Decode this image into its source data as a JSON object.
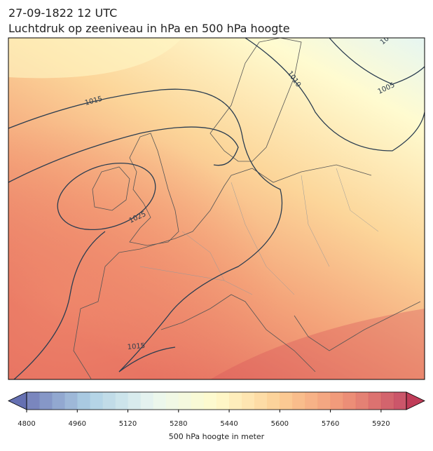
{
  "header": {
    "title": "27-09-1822 12 UTC",
    "subtitle": "Luchtdruk op zeeniveau in hPa en 500 hPa hoogte"
  },
  "map": {
    "contour_labels": [
      "1015",
      "1010",
      "1005",
      "1025",
      "1015",
      "10"
    ]
  },
  "colorbar": {
    "lim": [
      4800,
      6000
    ],
    "step": 40,
    "ticks": [
      4800,
      4960,
      5120,
      5280,
      5440,
      5600,
      5760,
      5920
    ],
    "label": "500 hPa hoogte in meter",
    "colors": [
      "#6570b2",
      "#a6cce3",
      "#e8f5ee",
      "#fffac6",
      "#fcc98a",
      "#ef8a6a",
      "#c03c58"
    ]
  }
}
